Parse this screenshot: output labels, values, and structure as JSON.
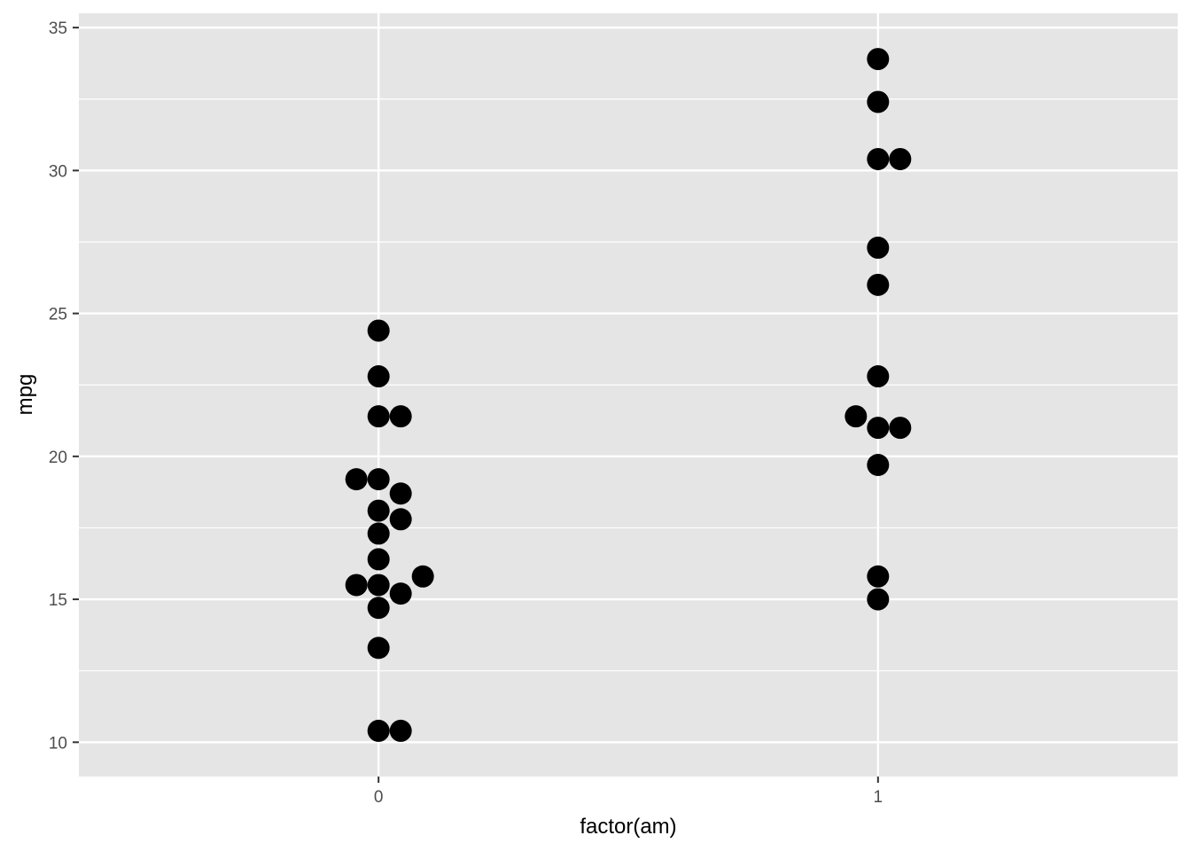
{
  "chart_data": {
    "type": "scatter",
    "subtype": "beeswarm",
    "title": "",
    "xlabel": "factor(am)",
    "ylabel": "mpg",
    "categories": [
      "0",
      "1"
    ],
    "ylim": [
      8.8,
      35.5
    ],
    "y_ticks": [
      10,
      15,
      20,
      25,
      30,
      35
    ],
    "y_tick_labels": [
      "10",
      "15",
      "20",
      "25",
      "30",
      "35"
    ],
    "grid": true,
    "legend": "none",
    "colors": {
      "panel": "#e5e5e5",
      "grid": "#ffffff",
      "point": "#000000"
    },
    "series": [
      {
        "category": "0",
        "values": [
          24.4,
          22.8,
          21.4,
          21.4,
          19.2,
          19.2,
          18.1,
          18.7,
          17.3,
          17.8,
          16.4,
          15.5,
          15.5,
          15.8,
          14.7,
          15.2,
          13.3,
          10.4,
          10.4
        ]
      },
      {
        "category": "1",
        "values": [
          33.9,
          32.4,
          30.4,
          30.4,
          27.3,
          26.0,
          22.8,
          21.0,
          21.0,
          21.4,
          19.7,
          15.8,
          15.0
        ]
      }
    ]
  }
}
